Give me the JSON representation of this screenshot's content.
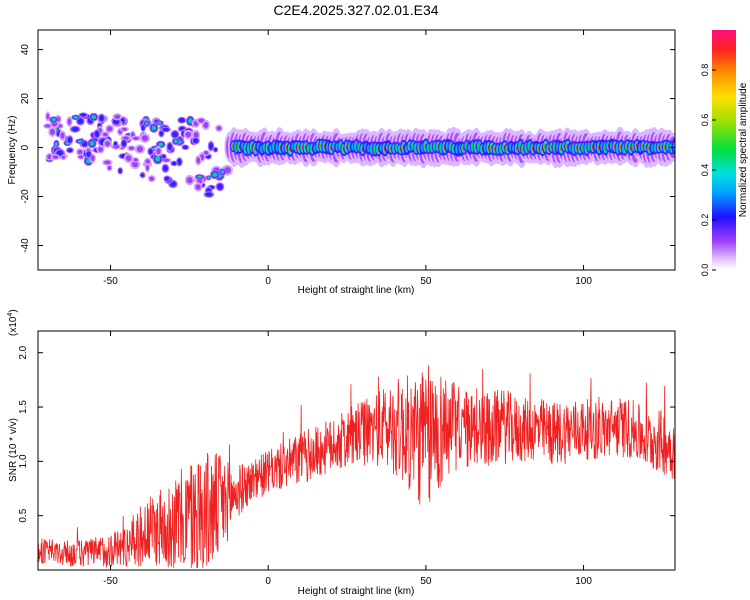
{
  "title": "C2E4.2025.327.02.01.E34",
  "chart_data": [
    {
      "type": "heatmap",
      "xlabel": "Height of straight line (km)",
      "ylabel": "Frequency (Hz)",
      "xlim": [
        -73,
        129
      ],
      "ylim": [
        -50,
        48
      ],
      "xticks": [
        -50,
        0,
        50,
        100
      ],
      "yticks": [
        40,
        20,
        0,
        -20,
        -40
      ],
      "colorbar": {
        "label": "Normalized spectral amplitude",
        "range": [
          0.0,
          0.96
        ],
        "ticks": [
          0.0,
          0.2,
          0.4,
          0.6,
          0.8
        ]
      },
      "description_features": [
        {
          "x_range": [
            -70,
            -12
          ],
          "freq_range": [
            -25,
            14
          ],
          "amplitude": "low-mid",
          "pattern": "scattered blobs"
        },
        {
          "x_range": [
            -12,
            129
          ],
          "freq_range": [
            -3,
            3
          ],
          "amplitude": "high",
          "pattern": "continuous band near 0 Hz"
        }
      ]
    },
    {
      "type": "line",
      "xlabel": "Height of straight line (km)",
      "ylabel": "SNR (10 * v/v)",
      "scale_label": "(x10",
      "scale_exponent": "4",
      "scale_suffix": ")",
      "xlim": [
        -73,
        129
      ],
      "ylim": [
        0,
        2.2
      ],
      "xticks": [
        -50,
        0,
        50,
        100
      ],
      "yticks": [
        0.5,
        1.0,
        1.5,
        2.0
      ],
      "ytick_labels": [
        "0.5",
        "1.0",
        "1.5",
        "2.0"
      ],
      "series": [
        {
          "name": "SNR",
          "color": "#ee2020",
          "envelope_x": [
            -73,
            -65,
            -55,
            -45,
            -40,
            -35,
            -30,
            -25,
            -20,
            -15,
            -12,
            -8,
            -4,
            0,
            5,
            10,
            15,
            20,
            25,
            30,
            35,
            40,
            45,
            50,
            55,
            60,
            65,
            70,
            75,
            80,
            85,
            90,
            95,
            100,
            105,
            110,
            115,
            120,
            125,
            129
          ],
          "envelope_mean": [
            0.18,
            0.15,
            0.16,
            0.22,
            0.32,
            0.38,
            0.42,
            0.48,
            0.52,
            0.58,
            0.66,
            0.76,
            0.84,
            0.9,
            0.96,
            1.02,
            1.08,
            1.14,
            1.2,
            1.26,
            1.3,
            1.32,
            1.25,
            1.2,
            1.3,
            1.32,
            1.28,
            1.3,
            1.32,
            1.28,
            1.3,
            1.25,
            1.28,
            1.3,
            1.28,
            1.32,
            1.3,
            1.2,
            1.18,
            1.12
          ],
          "envelope_amp": [
            0.12,
            0.12,
            0.14,
            0.2,
            0.3,
            0.35,
            0.42,
            0.55,
            0.6,
            0.5,
            0.32,
            0.22,
            0.2,
            0.2,
            0.22,
            0.25,
            0.25,
            0.25,
            0.28,
            0.3,
            0.35,
            0.45,
            0.55,
            0.7,
            0.55,
            0.4,
            0.35,
            0.35,
            0.35,
            0.3,
            0.3,
            0.3,
            0.3,
            0.28,
            0.28,
            0.28,
            0.28,
            0.28,
            0.3,
            0.3
          ]
        }
      ]
    }
  ]
}
